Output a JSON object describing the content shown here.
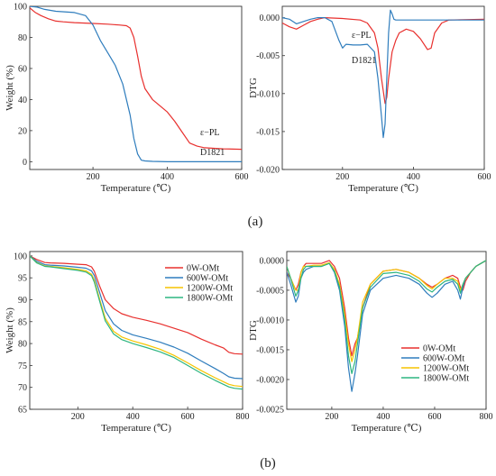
{
  "panels": {
    "a_label": "(a)",
    "b_label": "(b)"
  },
  "chart_data": [
    {
      "id": "a-tga",
      "type": "line",
      "xlabel": "Temperature (℃)",
      "ylabel": "Weight (%)",
      "xlim": [
        30,
        600
      ],
      "ylim": [
        -5,
        100
      ],
      "xticks": [
        200,
        400,
        600
      ],
      "yticks": [
        0,
        20,
        40,
        60,
        80,
        100
      ],
      "legend": "none",
      "annotations": [
        {
          "text": "ε−PL",
          "series": 0
        },
        {
          "text": "D1821",
          "series": 1
        }
      ],
      "series": [
        {
          "name": "ε−PL",
          "color": "#e8302e",
          "x": [
            30,
            45,
            60,
            80,
            100,
            120,
            150,
            200,
            240,
            270,
            290,
            300,
            310,
            320,
            330,
            340,
            360,
            380,
            400,
            420,
            440,
            460,
            480,
            500,
            520,
            550,
            600
          ],
          "y": [
            99,
            96,
            94,
            92,
            90.5,
            90,
            89.5,
            89,
            88.5,
            88,
            87.5,
            86,
            80,
            68,
            55,
            47,
            40,
            36,
            32,
            26,
            19,
            12,
            10,
            9,
            8.7,
            8.3,
            8
          ]
        },
        {
          "name": "D1821",
          "color": "#2f7dbd",
          "x": [
            30,
            50,
            70,
            100,
            150,
            180,
            200,
            220,
            240,
            260,
            280,
            300,
            310,
            320,
            330,
            340,
            360,
            400,
            500,
            600
          ],
          "y": [
            100,
            99.5,
            98,
            96.8,
            96,
            94,
            88,
            78,
            70,
            62,
            50,
            30,
            15,
            5,
            1,
            0.5,
            0.2,
            0,
            0,
            0
          ]
        }
      ]
    },
    {
      "id": "a-dtg",
      "type": "line",
      "xlabel": "Temperature (℃)",
      "ylabel": "DTG",
      "xlim": [
        30,
        600
      ],
      "ylim": [
        -0.02,
        0.0015
      ],
      "xticks": [
        200,
        400,
        600
      ],
      "yticks": [
        0.0,
        -0.005,
        -0.01,
        -0.015,
        -0.02
      ],
      "ytick_labels": [
        "0.000",
        "-0.005",
        "-0.010",
        "-0.015",
        "-0.020"
      ],
      "legend": "none",
      "annotations": [
        {
          "text": "ε−PL",
          "series": 0
        },
        {
          "text": "D1821",
          "series": 1
        }
      ],
      "series": [
        {
          "name": "ε−PL",
          "color": "#e8302e",
          "x": [
            30,
            50,
            70,
            90,
            110,
            130,
            150,
            200,
            250,
            270,
            290,
            300,
            310,
            320,
            325,
            330,
            340,
            350,
            360,
            380,
            400,
            420,
            440,
            450,
            460,
            480,
            500,
            600
          ],
          "y": [
            -0.0007,
            -0.0012,
            -0.0015,
            -0.001,
            -0.0005,
            -0.0002,
            0,
            -0.0001,
            -0.0003,
            -0.0007,
            -0.002,
            -0.004,
            -0.008,
            -0.0113,
            -0.0105,
            -0.008,
            -0.0045,
            -0.003,
            -0.002,
            -0.0015,
            -0.0018,
            -0.0028,
            -0.0042,
            -0.004,
            -0.002,
            -0.0007,
            -0.0003,
            -0.0002
          ]
        },
        {
          "name": "D1821",
          "color": "#2f7dbd",
          "x": [
            30,
            50,
            70,
            90,
            110,
            130,
            150,
            170,
            190,
            200,
            210,
            230,
            250,
            270,
            290,
            300,
            310,
            315,
            320,
            325,
            330,
            335,
            340,
            345,
            350,
            360,
            400,
            500,
            600
          ],
          "y": [
            0,
            -0.0002,
            -0.0008,
            -0.0005,
            -0.0002,
            0,
            0,
            -0.0005,
            -0.003,
            -0.004,
            -0.0035,
            -0.0036,
            -0.0036,
            -0.0035,
            -0.0045,
            -0.008,
            -0.013,
            -0.0158,
            -0.014,
            -0.008,
            -0.002,
            0.001,
            0.0005,
            -0.0002,
            -0.0003,
            -0.0003,
            -0.0003,
            -0.0003,
            -0.0003
          ]
        }
      ]
    },
    {
      "id": "b-tga",
      "type": "line",
      "xlabel": "Temperature (℃)",
      "ylabel": "Weight (%)",
      "xlim": [
        25,
        800
      ],
      "ylim": [
        65,
        101
      ],
      "xticks": [
        200,
        400,
        600,
        800
      ],
      "yticks": [
        65,
        70,
        75,
        80,
        85,
        90,
        95,
        100
      ],
      "legend": "top-right",
      "series": [
        {
          "name": "0W-OMt",
          "color": "#e8302e",
          "x": [
            25,
            50,
            80,
            100,
            150,
            200,
            230,
            250,
            260,
            280,
            300,
            330,
            360,
            400,
            450,
            500,
            550,
            600,
            650,
            700,
            730,
            750,
            770,
            800
          ],
          "y": [
            100,
            99.2,
            98.5,
            98.4,
            98.3,
            98.1,
            98,
            97.5,
            96.5,
            93,
            90,
            88,
            86.8,
            86,
            85.3,
            84.5,
            83.5,
            82.5,
            81,
            79.7,
            79,
            78,
            77.7,
            77.6
          ]
        },
        {
          "name": "600W-OMt",
          "color": "#2f7dbd",
          "x": [
            25,
            50,
            80,
            100,
            150,
            200,
            230,
            250,
            260,
            280,
            300,
            330,
            360,
            400,
            450,
            500,
            550,
            600,
            650,
            700,
            730,
            750,
            770,
            800
          ],
          "y": [
            100,
            98.8,
            98,
            97.9,
            97.7,
            97.4,
            97.2,
            96.6,
            95.5,
            91.5,
            87.5,
            84.5,
            83,
            82,
            81.2,
            80.3,
            79.2,
            77.8,
            76,
            74.3,
            73.2,
            72.4,
            72.1,
            72
          ]
        },
        {
          "name": "1200W-OMt",
          "color": "#f5c400",
          "x": [
            25,
            50,
            80,
            100,
            150,
            200,
            230,
            250,
            260,
            280,
            300,
            330,
            360,
            400,
            450,
            500,
            550,
            600,
            650,
            700,
            730,
            750,
            770,
            800
          ],
          "y": [
            100,
            98.5,
            97.7,
            97.6,
            97.3,
            96.9,
            96.6,
            95.8,
            94.5,
            90,
            85.8,
            82.8,
            81.5,
            80.6,
            79.7,
            78.7,
            77.3,
            75.6,
            73.8,
            72.2,
            71.3,
            70.7,
            70.4,
            70.2
          ]
        },
        {
          "name": "1800W-OMt",
          "color": "#2db580",
          "x": [
            25,
            50,
            80,
            100,
            150,
            200,
            230,
            250,
            260,
            280,
            300,
            330,
            360,
            400,
            450,
            500,
            550,
            600,
            650,
            700,
            730,
            750,
            770,
            800
          ],
          "y": [
            100,
            98.4,
            97.6,
            97.5,
            97.1,
            96.7,
            96.3,
            95.5,
            94,
            89.5,
            85.2,
            82.2,
            80.9,
            80,
            79.1,
            78.1,
            76.8,
            75,
            73.2,
            71.6,
            70.7,
            70.1,
            69.8,
            69.6
          ]
        }
      ]
    },
    {
      "id": "b-dtg",
      "type": "line",
      "xlabel": "Temperature (℃)",
      "ylabel": "DTG",
      "xlim": [
        25,
        800
      ],
      "ylim": [
        -0.0025,
        0.00015
      ],
      "xticks": [
        200,
        400,
        600,
        800
      ],
      "yticks": [
        0.0,
        -0.0005,
        -0.001,
        -0.0015,
        -0.002,
        -0.0025
      ],
      "ytick_labels": [
        "0.0000",
        "-0.0005",
        "-0.0010",
        "-0.0015",
        "-0.0020",
        "-0.0025"
      ],
      "legend": "bottom-right",
      "series": [
        {
          "name": "0W-OMt",
          "color": "#e8302e",
          "x": [
            25,
            40,
            60,
            70,
            80,
            90,
            100,
            130,
            160,
            190,
            210,
            230,
            250,
            265,
            278,
            290,
            300,
            320,
            350,
            400,
            450,
            500,
            540,
            570,
            590,
            610,
            640,
            670,
            690,
            700,
            710,
            720,
            740,
            760,
            780,
            800
          ],
          "y": [
            -0.0002,
            -0.0003,
            -0.0005,
            -0.0004,
            -0.0002,
            -0.0001,
            -5e-05,
            -5e-05,
            -5e-05,
            0,
            -0.0001,
            -0.0003,
            -0.0008,
            -0.0013,
            -0.0016,
            -0.0014,
            -0.0013,
            -0.0008,
            -0.0004,
            -0.00018,
            -0.00015,
            -0.0002,
            -0.0003,
            -0.0004,
            -0.00045,
            -0.0004,
            -0.0003,
            -0.00025,
            -0.0003,
            -0.00045,
            -0.0005,
            -0.00035,
            -0.0002,
            -0.0001,
            -5e-05,
            0
          ]
        },
        {
          "name": "600W-OMt",
          "color": "#2f7dbd",
          "x": [
            25,
            40,
            60,
            70,
            80,
            90,
            100,
            130,
            160,
            190,
            210,
            230,
            250,
            265,
            278,
            290,
            300,
            320,
            350,
            400,
            450,
            500,
            540,
            570,
            590,
            610,
            640,
            670,
            690,
            700,
            710,
            720,
            740,
            760,
            780,
            800
          ],
          "y": [
            -0.0002,
            -0.0004,
            -0.0007,
            -0.0006,
            -0.0003,
            -0.0002,
            -0.00015,
            -0.0001,
            -0.0001,
            -5e-05,
            -0.0002,
            -0.0005,
            -0.0011,
            -0.0018,
            -0.0022,
            -0.0019,
            -0.0016,
            -0.0009,
            -0.0005,
            -0.0003,
            -0.00025,
            -0.0003,
            -0.0004,
            -0.00055,
            -0.00062,
            -0.00055,
            -0.0004,
            -0.00035,
            -0.0005,
            -0.00065,
            -0.00045,
            -0.0003,
            -0.0002,
            -0.0001,
            -5e-05,
            0
          ]
        },
        {
          "name": "1200W-OMt",
          "color": "#f5c400",
          "x": [
            25,
            40,
            60,
            70,
            80,
            90,
            100,
            130,
            160,
            190,
            210,
            230,
            250,
            265,
            278,
            290,
            300,
            320,
            350,
            400,
            450,
            500,
            540,
            570,
            590,
            610,
            640,
            670,
            690,
            700,
            710,
            720,
            740,
            760,
            780,
            800
          ],
          "y": [
            -0.0001,
            -0.0003,
            -0.0005,
            -0.0005,
            -0.0002,
            -0.0001,
            -0.0001,
            -8e-05,
            -8e-05,
            -4e-05,
            -0.00015,
            -0.0004,
            -0.0009,
            -0.0014,
            -0.0017,
            -0.0015,
            -0.0013,
            -0.0007,
            -0.0004,
            -0.00018,
            -0.00015,
            -0.0002,
            -0.0003,
            -0.00042,
            -0.00048,
            -0.0004,
            -0.0003,
            -0.0003,
            -0.00035,
            -0.0005,
            -0.0004,
            -0.0003,
            -0.0002,
            -0.0001,
            -5e-05,
            0
          ]
        },
        {
          "name": "1800W-OMt",
          "color": "#2db580",
          "x": [
            25,
            40,
            60,
            70,
            80,
            90,
            100,
            130,
            160,
            190,
            210,
            230,
            250,
            265,
            278,
            290,
            300,
            320,
            350,
            400,
            450,
            500,
            540,
            570,
            590,
            610,
            640,
            670,
            690,
            700,
            710,
            720,
            740,
            760,
            780,
            800
          ],
          "y": [
            -0.0001,
            -0.0003,
            -0.0006,
            -0.0005,
            -0.0003,
            -0.00015,
            -0.0001,
            -0.0001,
            -0.0001,
            -5e-05,
            -0.00018,
            -0.00045,
            -0.001,
            -0.0016,
            -0.0019,
            -0.0017,
            -0.0014,
            -0.0008,
            -0.00045,
            -0.00022,
            -0.0002,
            -0.00025,
            -0.00035,
            -0.00048,
            -0.00053,
            -0.00045,
            -0.00035,
            -0.00032,
            -0.0004,
            -0.00055,
            -0.0004,
            -0.0003,
            -0.0002,
            -0.0001,
            -5e-05,
            0
          ]
        }
      ]
    }
  ]
}
